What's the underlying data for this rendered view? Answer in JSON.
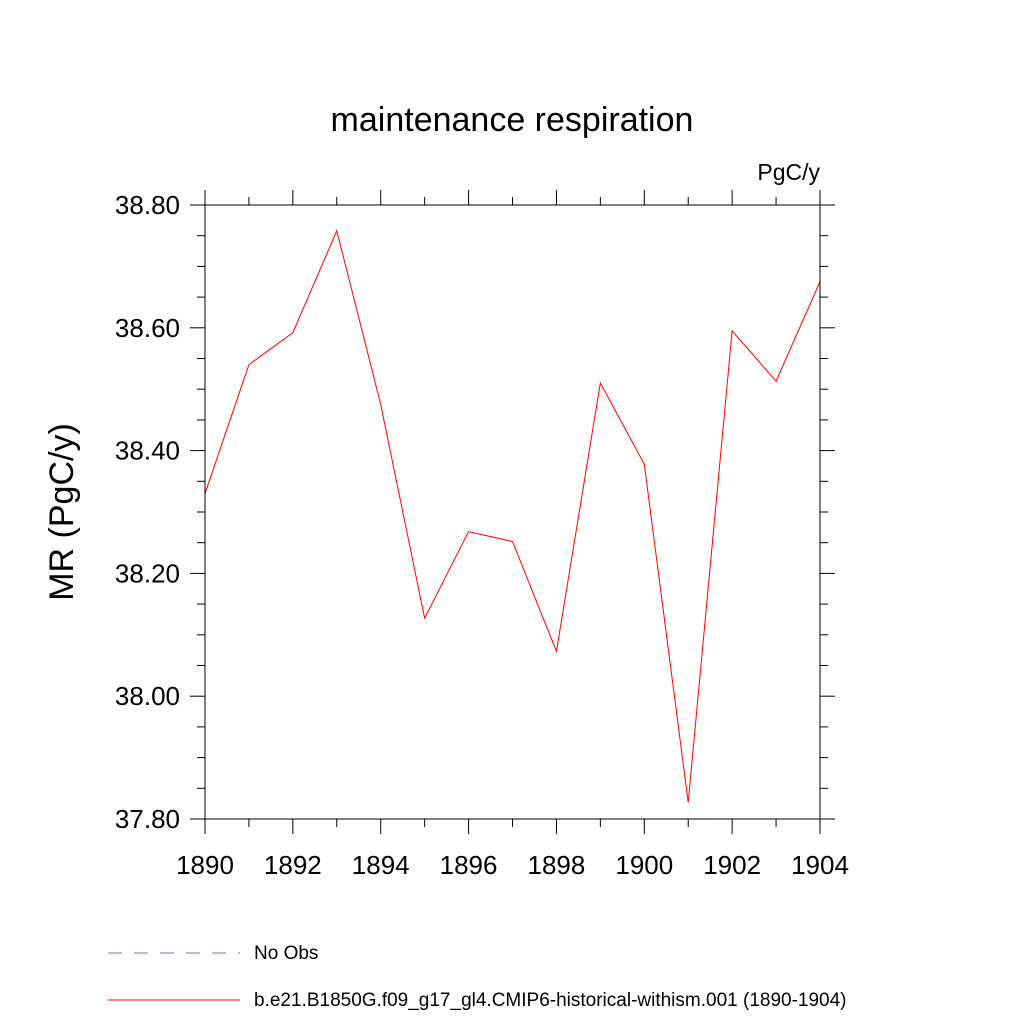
{
  "colors": {
    "series": "#ff0000",
    "obs": "#7b68c9",
    "axis": "#000000",
    "background": "#ffffff"
  },
  "chart_data": {
    "type": "line",
    "title": "maintenance respiration",
    "units": "PgC/y",
    "xlabel": "",
    "ylabel": "MR  (PgC/y)",
    "xlim": [
      1890,
      1904
    ],
    "ylim": [
      37.8,
      38.8
    ],
    "x_ticks": [
      1890,
      1892,
      1894,
      1896,
      1898,
      1900,
      1902,
      1904
    ],
    "x_tick_labels": [
      "1890",
      "1892",
      "1894",
      "1896",
      "1898",
      "1900",
      "1902",
      "1904"
    ],
    "y_ticks": [
      37.8,
      38.0,
      38.2,
      38.4,
      38.6,
      38.8
    ],
    "y_tick_labels": [
      "37.80",
      "38.00",
      "38.20",
      "38.40",
      "38.60",
      "38.80"
    ],
    "grid": false,
    "legend_position": "bottom-left",
    "legend": [
      {
        "name": "No Obs",
        "style": "dashed"
      },
      {
        "name": "b.e21.B1850G.f09_g17_gl4.CMIP6-historical-withism.001 (1890-1904)",
        "style": "solid"
      }
    ],
    "series": [
      {
        "name": "b.e21.B1850G.f09_g17_gl4.CMIP6-historical-withism.001 (1890-1904)",
        "x": [
          1890,
          1891,
          1892,
          1893,
          1894,
          1895,
          1896,
          1897,
          1898,
          1899,
          1900,
          1901,
          1902,
          1903,
          1904
        ],
        "values": [
          38.33,
          38.54,
          38.592,
          38.758,
          38.475,
          38.127,
          38.268,
          38.252,
          38.073,
          38.51,
          38.378,
          37.827,
          38.595,
          38.513,
          38.675
        ]
      }
    ]
  }
}
